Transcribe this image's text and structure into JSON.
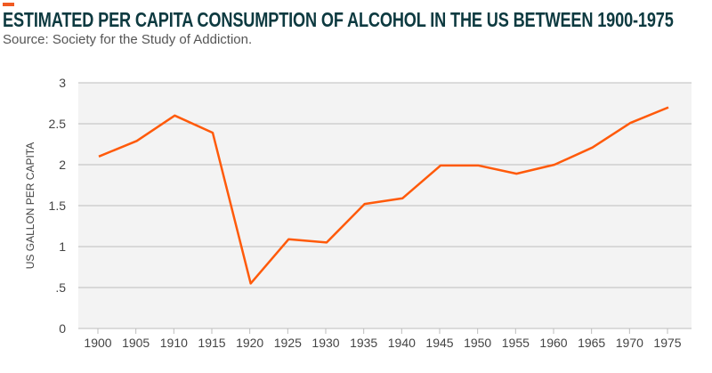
{
  "header": {
    "title": "ESTIMATED PER CAPITA CONSUMPTION OF ALCOHOL IN THE US BETWEEN 1900-1975",
    "subtitle": "Source: Society for the Study of Addiction."
  },
  "chart_data": {
    "type": "line",
    "title": "ESTIMATED PER CAPITA CONSUMPTION OF ALCOHOL IN THE US BETWEEN 1900-1975",
    "xlabel": "",
    "ylabel": "US GALLON PER CAPITA",
    "x": [
      1900,
      1905,
      1910,
      1915,
      1920,
      1925,
      1930,
      1935,
      1940,
      1945,
      1950,
      1955,
      1960,
      1965,
      1970,
      1975
    ],
    "series": [
      {
        "values": [
          2.1,
          2.29,
          2.6,
          2.39,
          0.55,
          1.09,
          1.05,
          1.52,
          1.59,
          1.99,
          1.99,
          1.89,
          2.0,
          2.21,
          2.51,
          2.7
        ],
        "color": "#ff5a0a"
      }
    ],
    "ylim": [
      0,
      3
    ],
    "yticks": [
      0,
      0.5,
      1,
      1.5,
      2,
      2.5,
      3
    ],
    "ytick_labels": [
      "0",
      ".5",
      "1",
      "1.5",
      "2",
      "2.5",
      "3"
    ],
    "xtick_labels": [
      "1900",
      "1905",
      "1910",
      "1915",
      "1920",
      "1925",
      "1930",
      "1935",
      "1940",
      "1945",
      "1950",
      "1955",
      "1960",
      "1965",
      "1970",
      "1975"
    ],
    "grid": true,
    "background": "#f3f3f3"
  }
}
